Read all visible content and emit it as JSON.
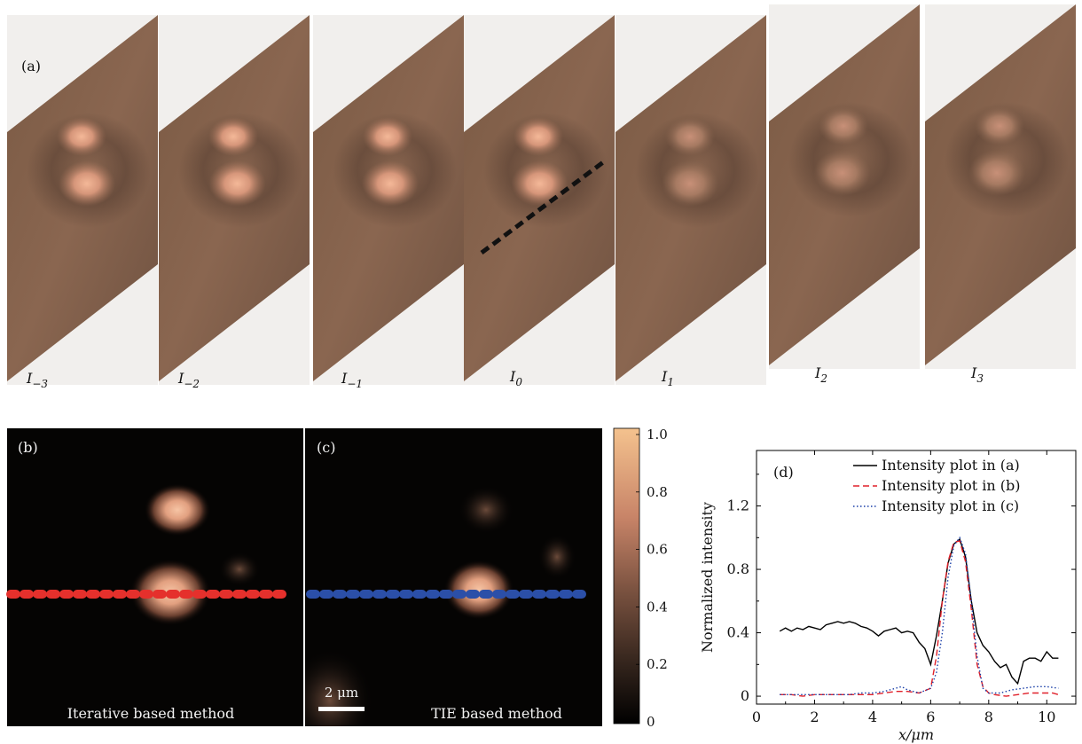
{
  "panel_a": {
    "label": "(a)",
    "frames": [
      {
        "base": "I",
        "sub": "−3"
      },
      {
        "base": "I",
        "sub": "−2"
      },
      {
        "base": "I",
        "sub": "−1"
      },
      {
        "base": "I",
        "sub": "0"
      },
      {
        "base": "I",
        "sub": "1"
      },
      {
        "base": "I",
        "sub": "2"
      },
      {
        "base": "I",
        "sub": "3"
      }
    ]
  },
  "panel_b": {
    "label": "(b)",
    "caption": "Iterative based method"
  },
  "panel_c": {
    "label": "(c)",
    "caption": "TIE based method",
    "scalebar": "2 μm"
  },
  "colorbar": {
    "ticks": [
      "1.0",
      "0.8",
      "0.6",
      "0.4",
      "0.2",
      "0"
    ]
  },
  "chart_data": {
    "type": "line",
    "panel_label": "(d)",
    "xlabel": "x/μm",
    "ylabel": "Normalized intensity",
    "xlim": [
      0,
      11
    ],
    "ylim": [
      -0.05,
      1.55
    ],
    "xticks": [
      "0",
      "2",
      "4",
      "6",
      "8",
      "10"
    ],
    "yticks": [
      "0",
      "0.4",
      "0.8",
      "1.2"
    ],
    "legend_position": "top-right",
    "series": [
      {
        "name": "Intensity plot in (a)",
        "color": "#000000",
        "dash": "solid",
        "x": [
          0.8,
          1.0,
          1.2,
          1.4,
          1.6,
          1.8,
          2.0,
          2.2,
          2.4,
          2.6,
          2.8,
          3.0,
          3.2,
          3.4,
          3.6,
          3.8,
          4.0,
          4.2,
          4.4,
          4.6,
          4.8,
          5.0,
          5.2,
          5.4,
          5.6,
          5.8,
          6.0,
          6.2,
          6.4,
          6.6,
          6.8,
          7.0,
          7.2,
          7.4,
          7.6,
          7.8,
          8.0,
          8.2,
          8.4,
          8.6,
          8.8,
          9.0,
          9.2,
          9.4,
          9.6,
          9.8,
          10.0,
          10.2,
          10.4
        ],
        "y": [
          0.41,
          0.43,
          0.41,
          0.43,
          0.42,
          0.44,
          0.43,
          0.42,
          0.45,
          0.46,
          0.47,
          0.46,
          0.47,
          0.46,
          0.44,
          0.43,
          0.41,
          0.38,
          0.41,
          0.42,
          0.43,
          0.4,
          0.41,
          0.4,
          0.34,
          0.3,
          0.2,
          0.38,
          0.6,
          0.84,
          0.96,
          0.99,
          0.88,
          0.6,
          0.4,
          0.32,
          0.28,
          0.22,
          0.18,
          0.2,
          0.12,
          0.08,
          0.22,
          0.24,
          0.24,
          0.22,
          0.28,
          0.24,
          0.24
        ]
      },
      {
        "name": "Intensity plot in (b)",
        "color": "#e0202a",
        "dash": "dashed",
        "x": [
          0.8,
          1.2,
          1.6,
          2.0,
          2.4,
          2.8,
          3.2,
          3.6,
          4.0,
          4.4,
          4.8,
          5.2,
          5.6,
          6.0,
          6.2,
          6.4,
          6.6,
          6.8,
          7.0,
          7.2,
          7.4,
          7.6,
          7.8,
          8.0,
          8.2,
          8.6,
          9.0,
          9.4,
          9.8,
          10.2,
          10.4
        ],
        "y": [
          0.01,
          0.01,
          0.0,
          0.01,
          0.01,
          0.01,
          0.01,
          0.01,
          0.01,
          0.02,
          0.03,
          0.03,
          0.02,
          0.05,
          0.25,
          0.6,
          0.85,
          0.97,
          0.98,
          0.85,
          0.55,
          0.2,
          0.06,
          0.02,
          0.01,
          0.0,
          0.01,
          0.02,
          0.02,
          0.02,
          0.01
        ]
      },
      {
        "name": "Intensity plot in (c)",
        "color": "#1a3fa8",
        "dash": "dotted",
        "x": [
          0.8,
          1.2,
          1.6,
          2.0,
          2.4,
          2.8,
          3.2,
          3.6,
          4.0,
          4.4,
          4.8,
          5.0,
          5.2,
          5.6,
          6.0,
          6.2,
          6.4,
          6.6,
          6.8,
          7.0,
          7.2,
          7.4,
          7.6,
          7.8,
          8.0,
          8.4,
          8.8,
          9.2,
          9.6,
          10.0,
          10.4
        ],
        "y": [
          0.01,
          0.01,
          0.01,
          0.01,
          0.01,
          0.01,
          0.01,
          0.02,
          0.02,
          0.03,
          0.05,
          0.06,
          0.04,
          0.02,
          0.05,
          0.15,
          0.4,
          0.75,
          0.95,
          1.0,
          0.9,
          0.6,
          0.25,
          0.05,
          0.02,
          0.02,
          0.04,
          0.05,
          0.06,
          0.06,
          0.05
        ]
      }
    ]
  }
}
